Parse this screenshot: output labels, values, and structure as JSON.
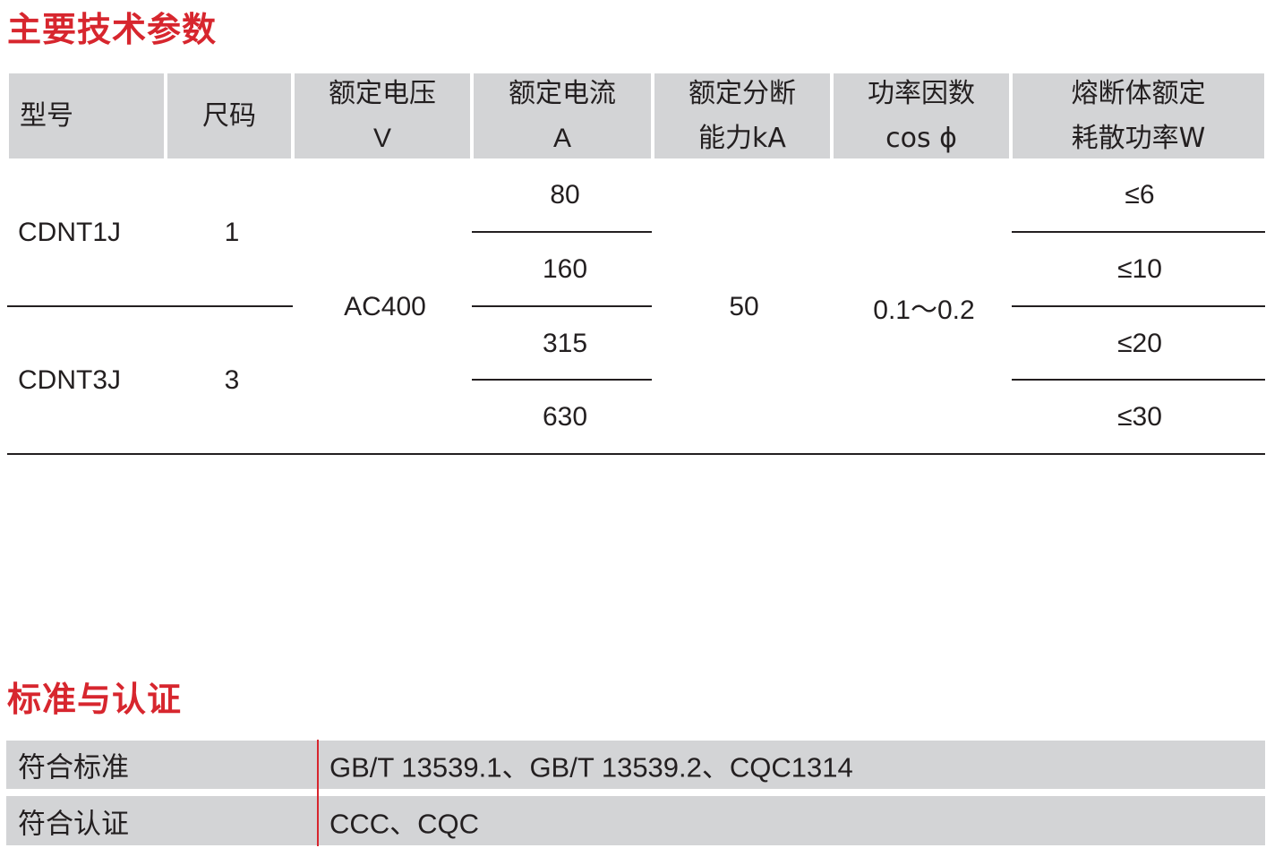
{
  "section1_title": "主要技术参数",
  "headers": [
    {
      "l1": "型号",
      "l2": ""
    },
    {
      "l1": "尺码",
      "l2": ""
    },
    {
      "l1": "额定电压",
      "l2": "V"
    },
    {
      "l1": "额定电流",
      "l2": "A"
    },
    {
      "l1": "额定分断",
      "l2": "能力kA"
    },
    {
      "l1": "功率因数",
      "l2": "cos ϕ"
    },
    {
      "l1": "熔断体额定",
      "l2": "耗散功率W"
    }
  ],
  "models": [
    {
      "model": "CDNT1J",
      "size": "1"
    },
    {
      "model": "CDNT3J",
      "size": "3"
    }
  ],
  "voltage": "AC400",
  "currents": [
    "80",
    "160",
    "315",
    "630"
  ],
  "breaking_capacity": "50",
  "power_factor": "0.1～0.2",
  "dissipation": [
    "≤6",
    "≤10",
    "≤20",
    "≤30"
  ],
  "section2_title": "标准与认证",
  "standards": [
    {
      "label": "符合标准",
      "value": "GB/T 13539.1、GB/T 13539.2、CQC1314"
    },
    {
      "label": "符合认证",
      "value": "CCC、CQC"
    }
  ],
  "colors": {
    "accent": "#d7262e",
    "header_bg": "#d3d4d6"
  }
}
